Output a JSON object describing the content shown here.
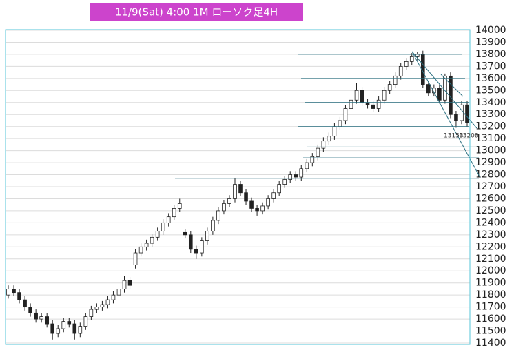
{
  "chart_data": {
    "type": "candlestick",
    "title": "11/9(Sat) 4:00 1M ローソク足4H",
    "open": [
      11800,
      11850,
      11820,
      11760,
      11700,
      11650,
      11600,
      11620,
      11560,
      11480,
      11520,
      11580,
      11560,
      11480,
      11540,
      11620,
      11680,
      11700,
      11720,
      11760,
      11800,
      11850,
      11920,
      12050,
      12150,
      12200,
      12230,
      12280,
      12330,
      12400,
      12450,
      12520,
      12320,
      12300,
      12180,
      12150,
      12250,
      12330,
      12420,
      12500,
      12560,
      12600,
      12720,
      12650,
      12580,
      12520,
      12500,
      12540,
      12600,
      12650,
      12720,
      12760,
      12800,
      12780,
      12850,
      12900,
      12950,
      13020,
      13080,
      13120,
      13200,
      13250,
      13350,
      13420,
      13500,
      13400,
      13380,
      13350,
      13420,
      13500,
      13550,
      13620,
      13700,
      13740,
      13780,
      13800,
      13550,
      13480,
      13520,
      13420,
      13620,
      13300,
      13250,
      13380
    ],
    "high": [
      11880,
      11880,
      11850,
      11790,
      11730,
      11680,
      11650,
      11650,
      11590,
      11550,
      11610,
      11610,
      11590,
      11570,
      11650,
      11710,
      11730,
      11750,
      11790,
      11830,
      11880,
      11960,
      11950,
      12180,
      12230,
      12260,
      12310,
      12360,
      12430,
      12480,
      12550,
      12600,
      12350,
      12330,
      12210,
      12280,
      12360,
      12450,
      12530,
      12590,
      12630,
      12770,
      12750,
      12680,
      12610,
      12550,
      12570,
      12630,
      12680,
      12750,
      12790,
      12830,
      12830,
      12880,
      12930,
      12980,
      13050,
      13110,
      13150,
      13230,
      13280,
      13380,
      13450,
      13560,
      13530,
      13430,
      13410,
      13450,
      13530,
      13580,
      13650,
      13730,
      13770,
      13810,
      13820,
      13830,
      13580,
      13550,
      13550,
      13640,
      13650,
      13330,
      13410,
      13410
    ],
    "low": [
      11770,
      11790,
      11730,
      11670,
      11620,
      11570,
      11570,
      11530,
      11430,
      11450,
      11490,
      11530,
      11430,
      11450,
      11510,
      11590,
      11650,
      11670,
      11690,
      11730,
      11770,
      11820,
      11850,
      12020,
      12120,
      12170,
      12200,
      12250,
      12300,
      12370,
      12420,
      12490,
      12270,
      12150,
      12100,
      12120,
      12220,
      12300,
      12390,
      12470,
      12530,
      12570,
      12620,
      12550,
      12490,
      12460,
      12470,
      12510,
      12570,
      12620,
      12690,
      12730,
      12750,
      12750,
      12820,
      12870,
      12920,
      12990,
      13050,
      13090,
      13170,
      13220,
      13320,
      13390,
      13370,
      13350,
      13320,
      13320,
      13390,
      13470,
      13520,
      13590,
      13670,
      13710,
      13750,
      13520,
      13450,
      13450,
      13390,
      13390,
      13270,
      13190,
      13220,
      13200
    ],
    "close": [
      11850,
      11820,
      11760,
      11700,
      11650,
      11600,
      11620,
      11560,
      11480,
      11520,
      11580,
      11560,
      11480,
      11540,
      11620,
      11680,
      11700,
      11720,
      11760,
      11800,
      11850,
      11920,
      11880,
      12150,
      12200,
      12230,
      12280,
      12330,
      12400,
      12450,
      12520,
      12560,
      12300,
      12180,
      12150,
      12250,
      12330,
      12420,
      12500,
      12560,
      12600,
      12720,
      12650,
      12580,
      12520,
      12500,
      12540,
      12600,
      12650,
      12720,
      12760,
      12800,
      12780,
      12850,
      12900,
      12950,
      13020,
      13080,
      13120,
      13200,
      13250,
      13350,
      13420,
      13500,
      13400,
      13380,
      13350,
      13420,
      13500,
      13550,
      13620,
      13700,
      13740,
      13780,
      13800,
      13550,
      13480,
      13520,
      13420,
      13620,
      13300,
      13250,
      13380,
      13230
    ],
    "ylim": [
      11400,
      14000
    ],
    "yticks": [
      11400,
      11500,
      11600,
      11700,
      11800,
      11900,
      12000,
      12100,
      12200,
      12300,
      12400,
      12500,
      12600,
      12700,
      12800,
      12900,
      13000,
      13100,
      13200,
      13300,
      13400,
      13500,
      13600,
      13700,
      13800,
      13900,
      14000
    ],
    "grid": true,
    "hlines": [
      13800,
      13600,
      13400,
      13200,
      13030,
      12940,
      12770
    ],
    "annotations": [
      "13153",
      "13208"
    ]
  }
}
